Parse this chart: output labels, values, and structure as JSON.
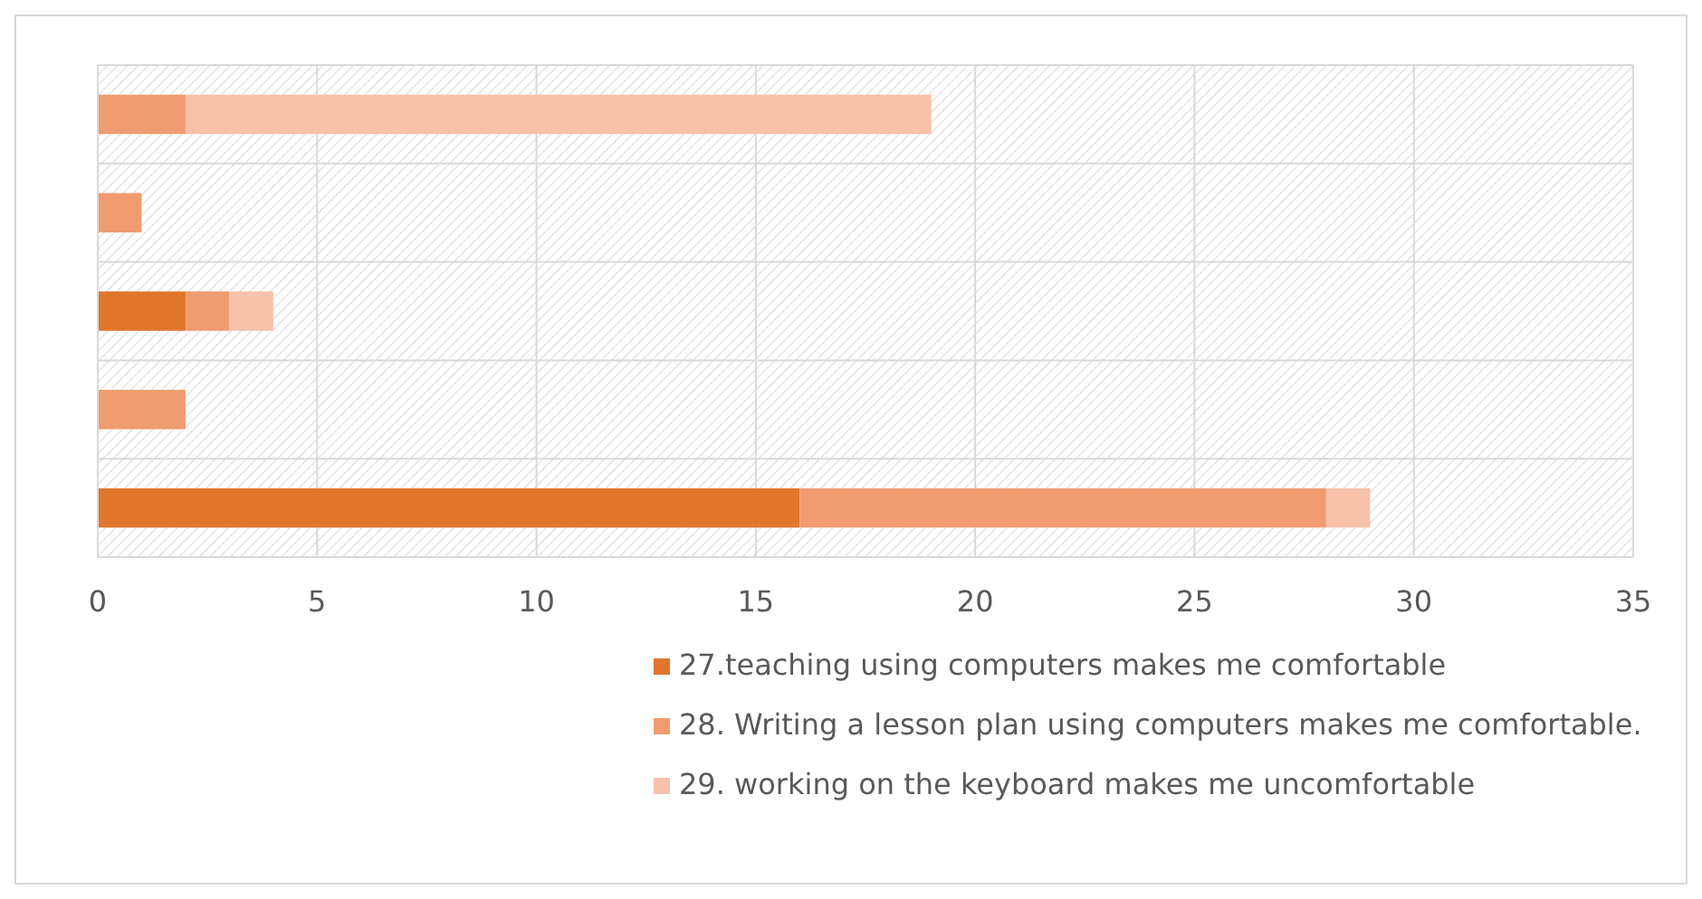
{
  "chart_data": {
    "type": "bar",
    "orientation": "horizontal",
    "stacked": true,
    "categories": [
      null,
      null,
      null,
      null,
      null
    ],
    "series": [
      {
        "name": "27.teaching using computers makes me comfortable",
        "color": "#e0762c",
        "values": [
          0,
          0,
          2,
          0,
          16
        ]
      },
      {
        "name": "28. Writing a lesson plan using computers makes me comfortable.",
        "color": "#f19b70",
        "values": [
          2,
          1,
          1,
          2,
          12
        ]
      },
      {
        "name": "29. working on the keyboard makes me uncomfortable",
        "color": "#f7c1aa",
        "values": [
          17,
          0,
          1,
          0,
          1
        ]
      }
    ],
    "xlim": [
      0,
      35
    ],
    "xticks": [
      0,
      5,
      10,
      15,
      20,
      25,
      30,
      35
    ],
    "grid": true,
    "legend": "bottom"
  }
}
